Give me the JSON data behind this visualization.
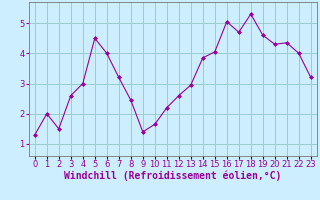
{
  "x": [
    0,
    1,
    2,
    3,
    4,
    5,
    6,
    7,
    8,
    9,
    10,
    11,
    12,
    13,
    14,
    15,
    16,
    17,
    18,
    19,
    20,
    21,
    22,
    23
  ],
  "y": [
    1.3,
    2.0,
    1.5,
    2.6,
    3.0,
    4.5,
    4.0,
    3.2,
    2.45,
    1.4,
    1.65,
    2.2,
    2.6,
    2.95,
    3.85,
    4.05,
    5.05,
    4.7,
    5.3,
    4.6,
    4.3,
    4.35,
    4.0,
    3.2
  ],
  "line_color": "#990099",
  "marker": "D",
  "marker_size": 2.0,
  "bg_color": "#cceeff",
  "grid_color": "#99cccc",
  "xlabel": "Windchill (Refroidissement éolien,°C)",
  "xlabel_color": "#990099",
  "xlabel_fontsize": 7,
  "tick_color": "#990099",
  "tick_fontsize": 6,
  "ylim": [
    0.6,
    5.7
  ],
  "yticks": [
    1,
    2,
    3,
    4,
    5
  ],
  "xlim": [
    -0.5,
    23.5
  ]
}
